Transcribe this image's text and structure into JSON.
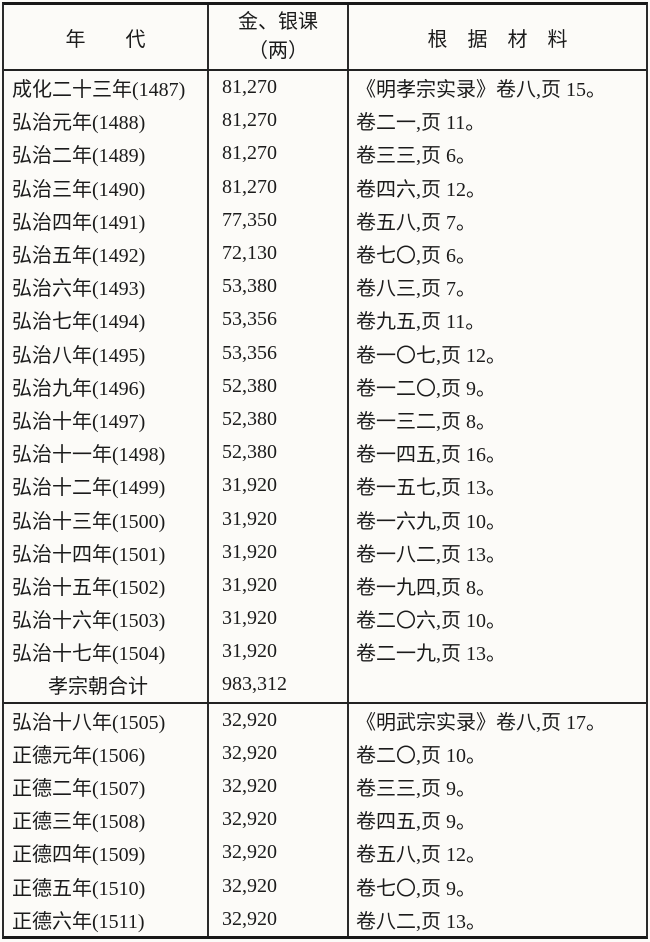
{
  "colors": {
    "paper": "#fcfbf8",
    "ink": "#1b1b1b",
    "rule": "#222222"
  },
  "table": {
    "header": {
      "year_label": "年　　代",
      "amount_label_line1": "金、银课",
      "amount_label_line2": "（两）",
      "source_label": "根　据　材　料"
    },
    "sections": [
      {
        "rows": [
          {
            "year": "成化二十三年(1487)",
            "amount": "81,270",
            "source": "《明孝宗实录》卷八,页 15。"
          },
          {
            "year": "弘治元年(1488)",
            "amount": "81,270",
            "source": "卷二一,页 11。"
          },
          {
            "year": "弘治二年(1489)",
            "amount": "81,270",
            "source": "卷三三,页 6。"
          },
          {
            "year": "弘治三年(1490)",
            "amount": "81,270",
            "source": "卷四六,页 12。"
          },
          {
            "year": "弘治四年(1491)",
            "amount": "77,350",
            "source": "卷五八,页 7。"
          },
          {
            "year": "弘治五年(1492)",
            "amount": "72,130",
            "source": "卷七〇,页 6。"
          },
          {
            "year": "弘治六年(1493)",
            "amount": "53,380",
            "source": "卷八三,页 7。"
          },
          {
            "year": "弘治七年(1494)",
            "amount": "53,356",
            "source": "卷九五,页 11。"
          },
          {
            "year": "弘治八年(1495)",
            "amount": "53,356",
            "source": "卷一〇七,页 12。"
          },
          {
            "year": "弘治九年(1496)",
            "amount": "52,380",
            "source": "卷一二〇,页 9。"
          },
          {
            "year": "弘治十年(1497)",
            "amount": "52,380",
            "source": "卷一三二,页 8。"
          },
          {
            "year": "弘治十一年(1498)",
            "amount": "52,380",
            "source": "卷一四五,页 16。"
          },
          {
            "year": "弘治十二年(1499)",
            "amount": "31,920",
            "source": "卷一五七,页 13。"
          },
          {
            "year": "弘治十三年(1500)",
            "amount": "31,920",
            "source": "卷一六九,页 10。"
          },
          {
            "year": "弘治十四年(1501)",
            "amount": "31,920",
            "source": "卷一八二,页 13。"
          },
          {
            "year": "弘治十五年(1502)",
            "amount": "31,920",
            "source": "卷一九四,页 8。"
          },
          {
            "year": "弘治十六年(1503)",
            "amount": "31,920",
            "source": "卷二〇六,页 10。"
          },
          {
            "year": "弘治十七年(1504)",
            "amount": "31,920",
            "source": "卷二一九,页 13。"
          },
          {
            "year": "孝宗朝合计",
            "amount": "983,312",
            "source": "",
            "is_total": true
          }
        ]
      },
      {
        "rows": [
          {
            "year": "弘治十八年(1505)",
            "amount": "32,920",
            "source": "《明武宗实录》卷八,页 17。"
          },
          {
            "year": "正德元年(1506)",
            "amount": "32,920",
            "source": "卷二〇,页 10。"
          },
          {
            "year": "正德二年(1507)",
            "amount": "32,920",
            "source": "卷三三,页 9。"
          },
          {
            "year": "正德三年(1508)",
            "amount": "32,920",
            "source": "卷四五,页 9。"
          },
          {
            "year": "正德四年(1509)",
            "amount": "32,920",
            "source": "卷五八,页 12。"
          },
          {
            "year": "正德五年(1510)",
            "amount": "32,920",
            "source": "卷七〇,页 9。"
          },
          {
            "year": "正德六年(1511)",
            "amount": "32,920",
            "source": "卷八二,页 13。"
          }
        ]
      }
    ]
  }
}
